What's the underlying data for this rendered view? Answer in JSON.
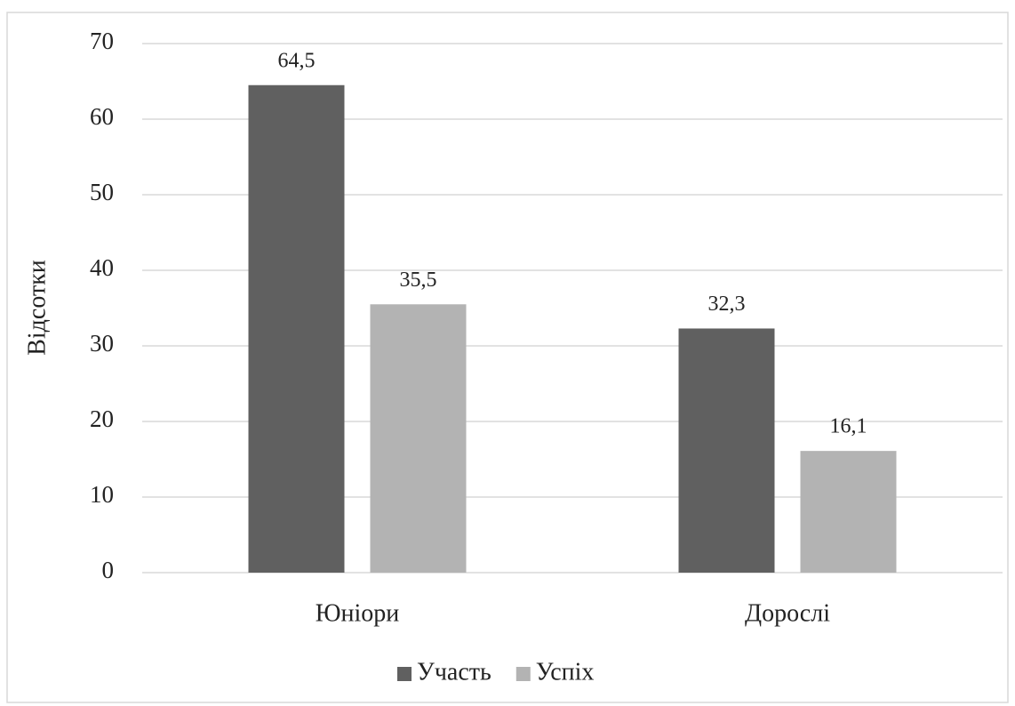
{
  "chart_data": {
    "type": "bar",
    "y_axis_label": "Відсотки",
    "categories": [
      "Юніори",
      "Дорослі"
    ],
    "series": [
      {
        "name": "Участь",
        "color": "#606060",
        "values": [
          64.5,
          32.3
        ],
        "value_labels": [
          "64,5",
          "32,3"
        ]
      },
      {
        "name": "Успіх",
        "color": "#b3b3b3",
        "values": [
          35.5,
          16.1
        ],
        "value_labels": [
          "35,5",
          "16,1"
        ]
      }
    ],
    "ylim": [
      0,
      70
    ],
    "yticks": [
      0,
      10,
      20,
      30,
      40,
      50,
      60,
      70
    ],
    "grid": true,
    "legend": "bottom"
  }
}
